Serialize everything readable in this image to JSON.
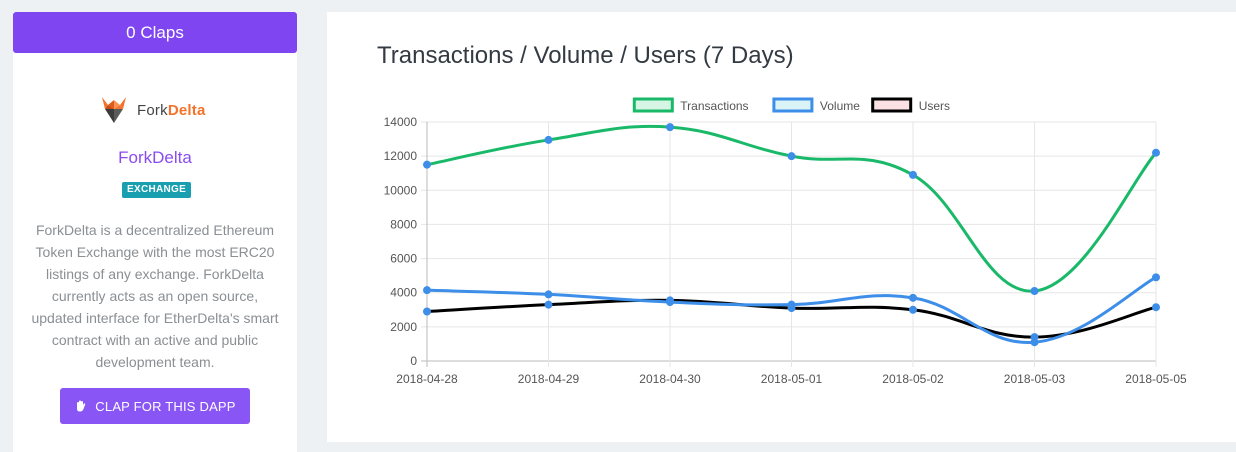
{
  "sidebar": {
    "claps_label": "0 Claps",
    "logo": {
      "prefix": "Fork",
      "accent": "Delta"
    },
    "dapp_name": "ForkDelta",
    "category": "EXCHANGE",
    "description_lines": [
      "ForkDelta is a decentralized Ethereum",
      "Token Exchange with the most ERC20",
      "listings of any exchange. ForkDelta",
      "currently acts as an open source,",
      "updated interface for EtherDelta's smart",
      "contract with an active and public",
      "development team."
    ],
    "clap_button_label": "CLAP FOR THIS DAPP",
    "clap_icon": "clap-hand-icon"
  },
  "colors": {
    "claps_bar": "#7f45f0",
    "accent_purple": "#8a4bef",
    "badge": "#1a9fb0",
    "logo_orange": "#f4732a"
  },
  "chart_data": {
    "type": "line",
    "title": "Transactions / Volume / Users (7 Days)",
    "categories": [
      "2018-04-28",
      "2018-04-29",
      "2018-04-30",
      "2018-05-01",
      "2018-05-02",
      "2018-05-03",
      "2018-05-05"
    ],
    "ylim": [
      0,
      14000
    ],
    "yticks": [
      0,
      2000,
      4000,
      6000,
      8000,
      10000,
      12000,
      14000
    ],
    "grid": true,
    "legend_position": "top-center",
    "series": [
      {
        "name": "Transactions",
        "color": "#1ab96a",
        "fill": "#d6f5e4",
        "values": [
          11500,
          12950,
          13700,
          12000,
          10900,
          4100,
          12200
        ]
      },
      {
        "name": "Volume",
        "color": "#3d8ee8",
        "fill": "#d9f3f6",
        "values": [
          4150,
          3900,
          3450,
          3300,
          3700,
          1100,
          4900
        ]
      },
      {
        "name": "Users",
        "color": "#000000",
        "fill": "#fbe0e4",
        "values": [
          2900,
          3300,
          3550,
          3100,
          3000,
          1400,
          3150
        ]
      }
    ]
  }
}
